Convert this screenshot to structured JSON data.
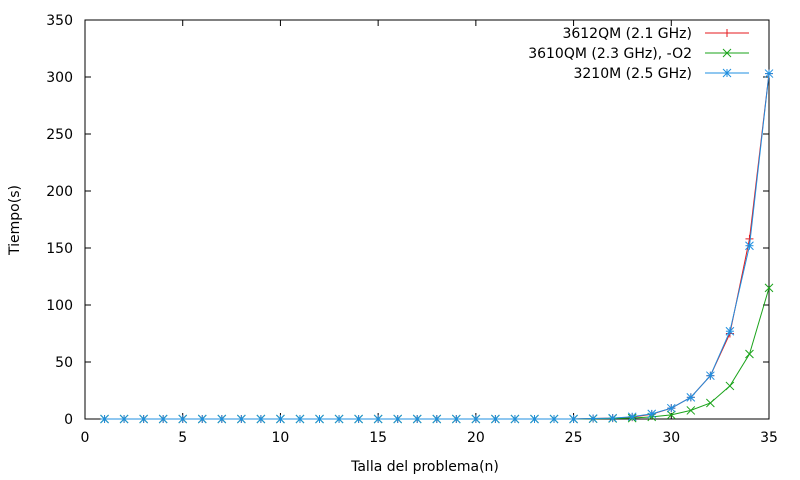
{
  "chart_data": {
    "type": "line",
    "xlabel": "Talla del problema(n)",
    "ylabel": "Tiempo(s)",
    "xlim": [
      0,
      35
    ],
    "ylim": [
      0,
      350
    ],
    "x_ticks": [
      0,
      5,
      10,
      15,
      20,
      25,
      30,
      35
    ],
    "y_ticks": [
      0,
      50,
      100,
      150,
      200,
      250,
      300,
      350
    ],
    "grid": false,
    "legend_position": "top-right",
    "x": [
      1,
      2,
      3,
      4,
      5,
      6,
      7,
      8,
      9,
      10,
      11,
      12,
      13,
      14,
      15,
      16,
      17,
      18,
      19,
      20,
      21,
      22,
      23,
      24,
      25,
      26,
      27,
      28,
      29,
      30,
      31,
      32,
      33,
      34,
      35
    ],
    "series": [
      {
        "name": "3612QM (2.1 GHz)",
        "color": "#e41a1c",
        "marker": "plus",
        "values": [
          0,
          0,
          0,
          0,
          0,
          0,
          0,
          0,
          0,
          0,
          0,
          0,
          0,
          0,
          0,
          0,
          0,
          0,
          0,
          0,
          0,
          0,
          0,
          0,
          0,
          0.4,
          0.8,
          1.6,
          4.2,
          9.5,
          19,
          38,
          75,
          158,
          303
        ]
      },
      {
        "name": "3610QM (2.3 GHz), -O2",
        "color": "#1aa31a",
        "marker": "cross",
        "values": [
          0,
          0,
          0,
          0,
          0,
          0,
          0,
          0,
          0,
          0,
          0,
          0,
          0,
          0,
          0,
          0,
          0,
          0,
          0,
          0,
          0,
          0,
          0,
          0,
          0,
          0.2,
          0.4,
          0.8,
          1.8,
          3.6,
          7.5,
          14,
          29,
          57,
          115
        ]
      },
      {
        "name": "3210M (2.5 GHz)",
        "color": "#1f8fe0",
        "marker": "star",
        "values": [
          0,
          0,
          0,
          0,
          0,
          0,
          0,
          0,
          0,
          0,
          0,
          0,
          0,
          0,
          0,
          0,
          0,
          0,
          0,
          0,
          0,
          0,
          0,
          0,
          0,
          0.4,
          0.8,
          2.0,
          4.5,
          9.5,
          19,
          38,
          77,
          152,
          303
        ]
      }
    ]
  }
}
